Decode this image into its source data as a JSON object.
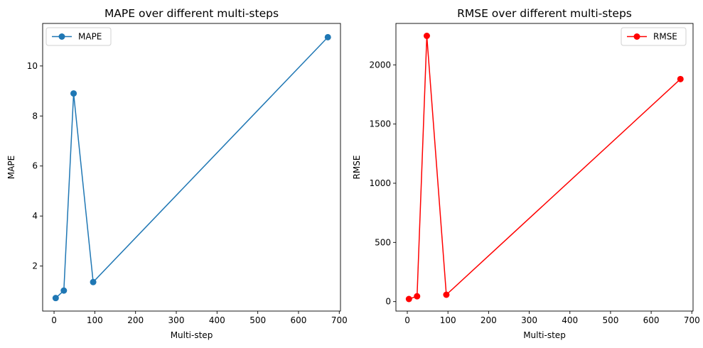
{
  "chart_data": [
    {
      "type": "line",
      "title": "MAPE over different multi-steps",
      "xlabel": "Multi-step",
      "ylabel": "MAPE",
      "xlim": [
        -28,
        703
      ],
      "ylim": [
        0.2,
        11.7
      ],
      "xticks": [
        0,
        100,
        200,
        300,
        400,
        500,
        600,
        700
      ],
      "yticks": [
        2,
        4,
        6,
        8,
        10
      ],
      "grid": false,
      "legend_position": "upper left",
      "series": [
        {
          "name": "MAPE",
          "color": "#1f77b4",
          "marker": "circle",
          "x": [
            4,
            24,
            48,
            96,
            672
          ],
          "y": [
            0.72,
            1.02,
            8.9,
            1.36,
            11.15
          ]
        }
      ]
    },
    {
      "type": "line",
      "title": "RMSE over different multi-steps",
      "xlabel": "Multi-step",
      "ylabel": "RMSE",
      "xlim": [
        -28,
        703
      ],
      "ylim": [
        -80,
        2350
      ],
      "xticks": [
        0,
        100,
        200,
        300,
        400,
        500,
        600,
        700
      ],
      "yticks": [
        0,
        500,
        1000,
        1500,
        2000
      ],
      "grid": false,
      "legend_position": "upper right",
      "series": [
        {
          "name": "RMSE",
          "color": "#ff0000",
          "marker": "circle",
          "x": [
            4,
            24,
            48,
            96,
            672
          ],
          "y": [
            22,
            45,
            2245,
            58,
            1880
          ]
        }
      ]
    }
  ]
}
